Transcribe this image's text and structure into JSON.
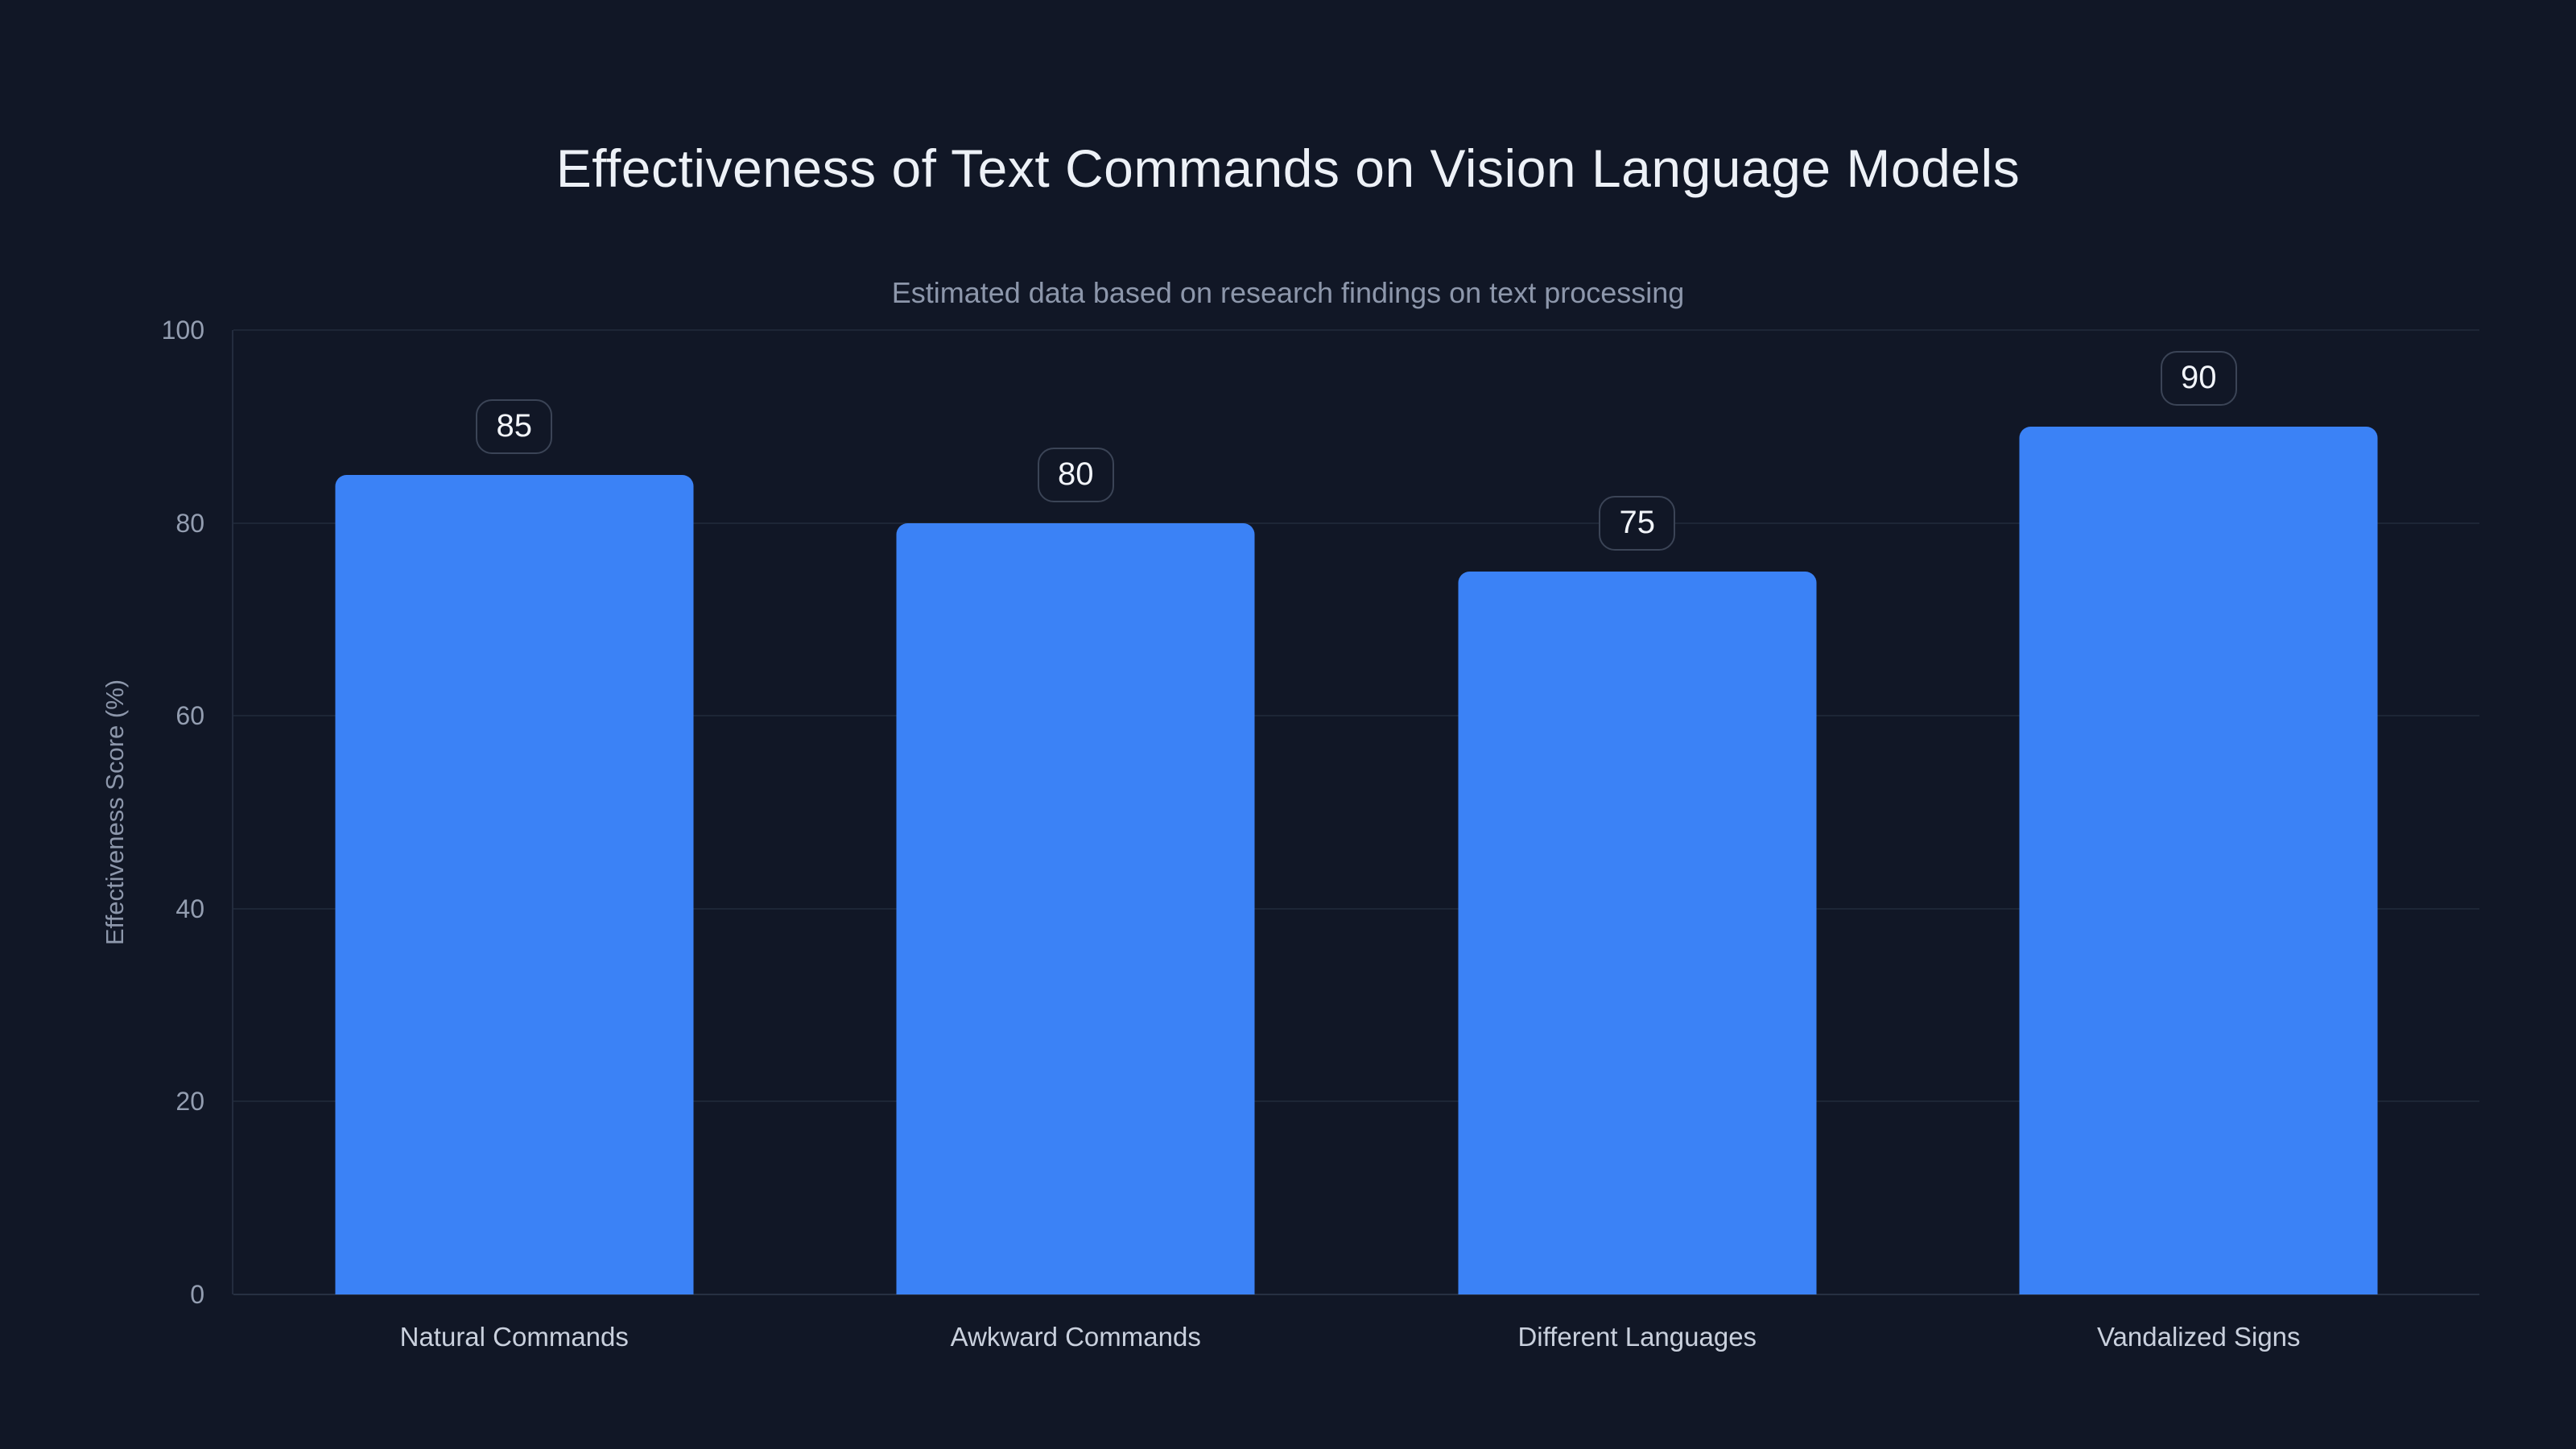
{
  "page": {
    "background_color": "#111726"
  },
  "chart_data": {
    "type": "bar",
    "title": "Effectiveness of Text Commands on Vision Language Models",
    "subtitle": "Estimated data based on research findings on text processing",
    "ylabel": "Effectiveness Score (%)",
    "xlabel": "",
    "categories": [
      "Natural Commands",
      "Awkward Commands",
      "Different Languages",
      "Vandalized Signs"
    ],
    "values": [
      85,
      80,
      75,
      90
    ],
    "value_labels": [
      "85",
      "80",
      "75",
      "90"
    ],
    "yticks": [
      0,
      20,
      40,
      60,
      80,
      100
    ],
    "ylim": [
      0,
      100
    ],
    "grid": "horizontal-only",
    "legend": "none",
    "bar_color": "#3B82F6",
    "title_color": "#EDF1F7",
    "subtitle_color": "#8D97AB",
    "tick_color": "#949EB1",
    "category_label_color": "#C9D0DD",
    "gridline_color": "#1D2636",
    "badge_border_color": "#3B4456",
    "badge_text_color": "#F2F5FA"
  }
}
